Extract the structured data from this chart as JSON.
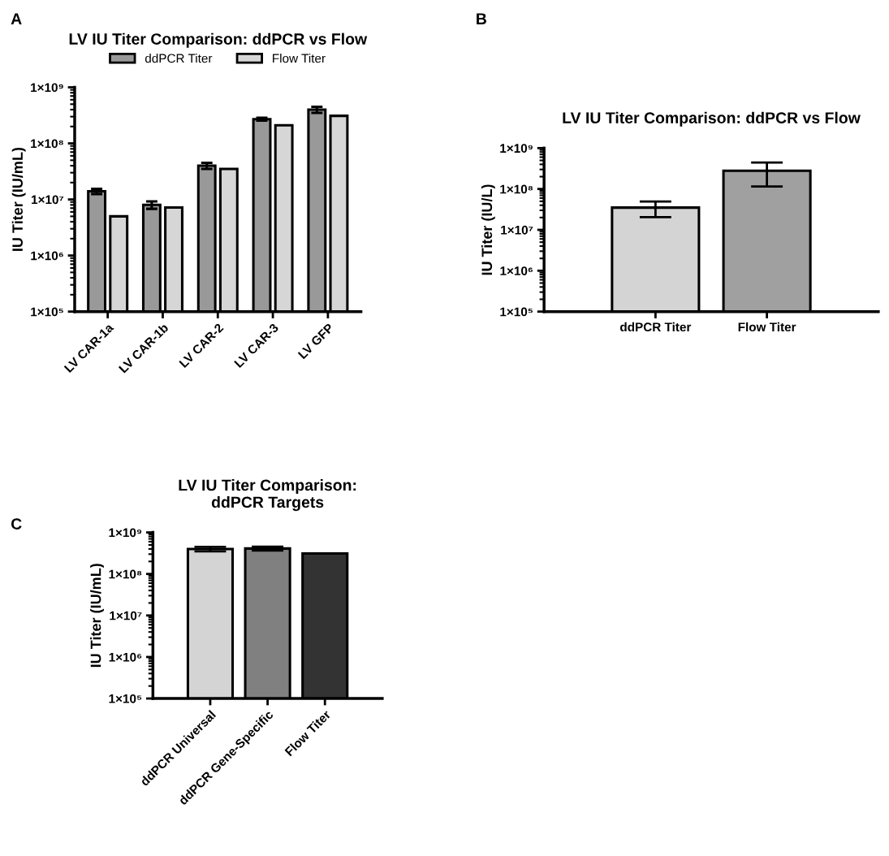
{
  "chart_data": [
    {
      "type": "bar",
      "title": "LV IU Titer Comparison: ddPCR vs Flow",
      "ylabel": "IU Titer (IU/mL)",
      "annotations": [
        "A"
      ],
      "categories": [
        "LV CAR-1a",
        "LV CAR-1b",
        "LV CAR-2",
        "LV CAR-3",
        "LV GFP"
      ],
      "series": [
        {
          "name": "ddPCR Titer",
          "color": "#999999",
          "values": [
            14000000,
            8000000,
            40000000,
            270000000,
            400000000
          ],
          "errors": [
            1500000,
            1200000,
            5000000,
            15000000,
            50000000
          ]
        },
        {
          "name": "Flow Titer",
          "color": "#d6d6d6",
          "values": [
            5000000,
            7200000,
            35000000,
            210000000,
            310000000
          ]
        }
      ],
      "log": true,
      "ylim": [
        100000,
        1000000000
      ],
      "yticks": [
        {
          "value": 100000,
          "label": "1×10⁵"
        },
        {
          "value": 1000000,
          "label": "1×10⁶"
        },
        {
          "value": 10000000,
          "label": "1×10⁷"
        },
        {
          "value": 100000000,
          "label": "1×10⁸"
        },
        {
          "value": 1000000000,
          "label": "1×10⁹"
        }
      ],
      "legend": "top",
      "grid": false
    },
    {
      "type": "bar",
      "title": "LV IU Titer Comparison: ddPCR vs Flow",
      "ylabel": "IU Titer (IU/L)",
      "annotations": [
        "B"
      ],
      "categories": [
        "ddPCR Titer",
        "Flow Titer"
      ],
      "values": [
        35000000,
        280000000
      ],
      "errors": [
        14500000,
        165000000
      ],
      "colors": [
        "#d4d4d4",
        "#a0a0a0"
      ],
      "log": true,
      "ylim": [
        100000,
        1000000000
      ],
      "yticks": [
        {
          "value": 100000,
          "label": "1×10⁵"
        },
        {
          "value": 1000000,
          "label": "1×10⁶"
        },
        {
          "value": 10000000,
          "label": "1×10⁷"
        },
        {
          "value": 100000000,
          "label": "1×10⁸"
        },
        {
          "value": 1000000000,
          "label": "1×10⁹"
        }
      ],
      "grid": false
    },
    {
      "type": "bar",
      "title": "LV IU Titer Comparison:\nddPCR Targets",
      "ylabel": "IU Titer (IU/mL)",
      "annotations": [
        "C"
      ],
      "categories": [
        "ddPCR Universal",
        "ddPCR Gene-Specific",
        "Flow Titer"
      ],
      "values": [
        400000000,
        410000000,
        310000000
      ],
      "errors": [
        50000000,
        45000000,
        null
      ],
      "colors": [
        "#d4d4d4",
        "#808080",
        "#333333"
      ],
      "log": true,
      "ylim": [
        100000,
        1000000000
      ],
      "yticks": [
        {
          "value": 100000,
          "label": "1×10⁵"
        },
        {
          "value": 1000000,
          "label": "1×10⁶"
        },
        {
          "value": 10000000,
          "label": "1×10⁷"
        },
        {
          "value": 100000000,
          "label": "1×10⁸"
        },
        {
          "value": 1000000000,
          "label": "1×10⁹"
        }
      ],
      "grid": false
    }
  ]
}
